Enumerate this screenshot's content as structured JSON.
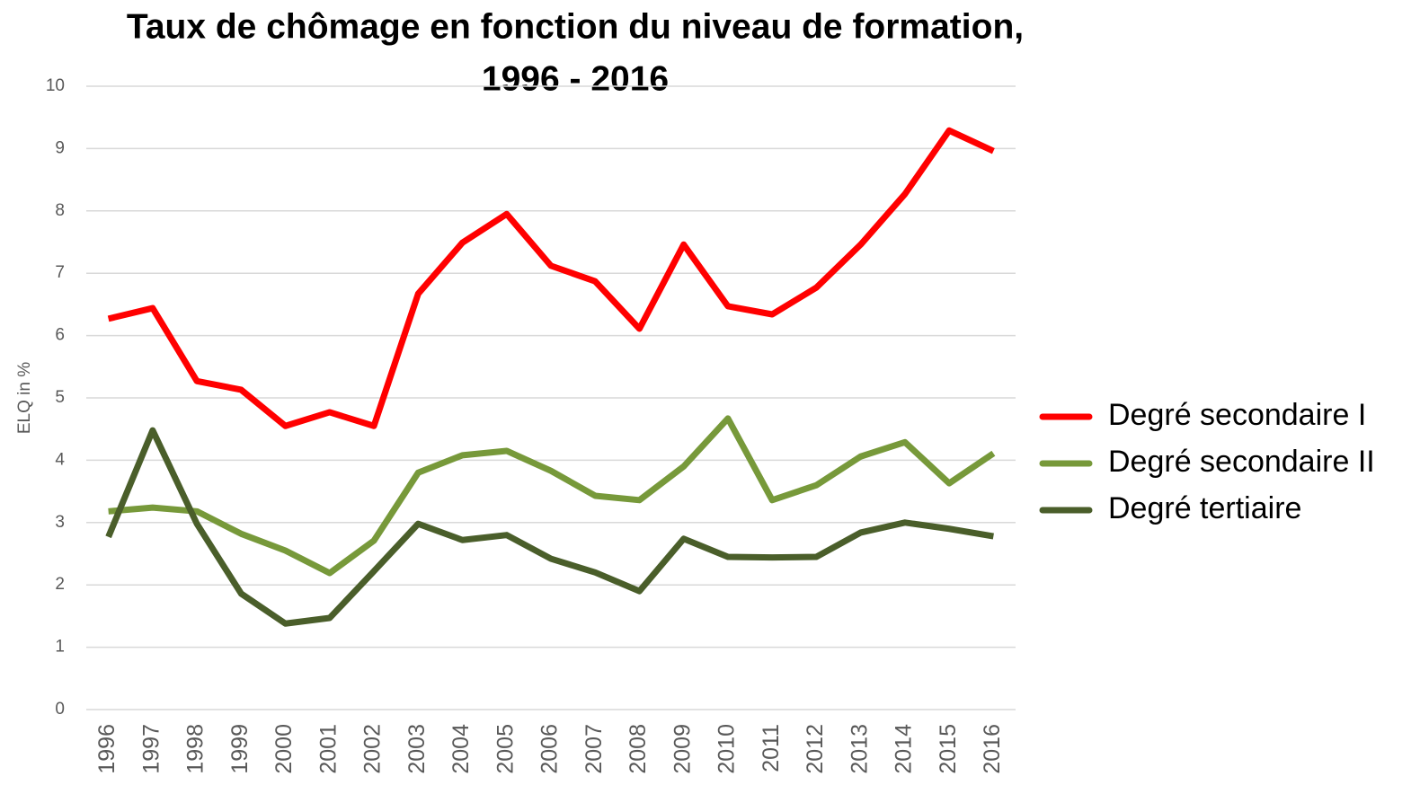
{
  "chart_data": {
    "type": "line",
    "title": [
      "Taux de chômage en fonction du niveau de formation,",
      "1996 - 2016"
    ],
    "y_label": "ELQ in %",
    "categories": [
      "1996",
      "1997",
      "1998",
      "1999",
      "2000",
      "2001",
      "2002",
      "2003",
      "2004",
      "2005",
      "2006",
      "2007",
      "2008",
      "2009",
      "2010",
      "2011",
      "2012",
      "2013",
      "2014",
      "2015",
      "2016"
    ],
    "series": [
      {
        "name": "Degré secondaire I",
        "color": "#ff0000",
        "values": [
          6.27,
          6.44,
          5.27,
          5.13,
          4.55,
          4.77,
          4.55,
          6.67,
          7.49,
          7.95,
          7.12,
          6.87,
          6.11,
          7.46,
          6.47,
          6.34,
          6.77,
          7.46,
          8.27,
          9.29,
          8.96
        ]
      },
      {
        "name": "Degré secondaire II",
        "color": "#77993a",
        "values": [
          3.18,
          3.24,
          3.18,
          2.82,
          2.55,
          2.19,
          2.71,
          3.8,
          4.08,
          4.15,
          3.83,
          3.43,
          3.36,
          3.9,
          4.67,
          3.36,
          3.6,
          4.06,
          4.29,
          3.63,
          4.11
        ]
      },
      {
        "name": "Degré tertiaire",
        "color": "#4a5e2a",
        "values": [
          2.77,
          4.48,
          2.98,
          1.86,
          1.38,
          1.47,
          2.22,
          2.98,
          2.72,
          2.8,
          2.42,
          2.2,
          1.9,
          2.74,
          2.45,
          2.44,
          2.45,
          2.84,
          3.0,
          2.9,
          2.78
        ]
      }
    ],
    "ylim": [
      0,
      10
    ],
    "yticks": [
      0,
      1,
      2,
      3,
      4,
      5,
      6,
      7,
      8,
      9,
      10
    ],
    "grid": true,
    "legend": "right"
  }
}
